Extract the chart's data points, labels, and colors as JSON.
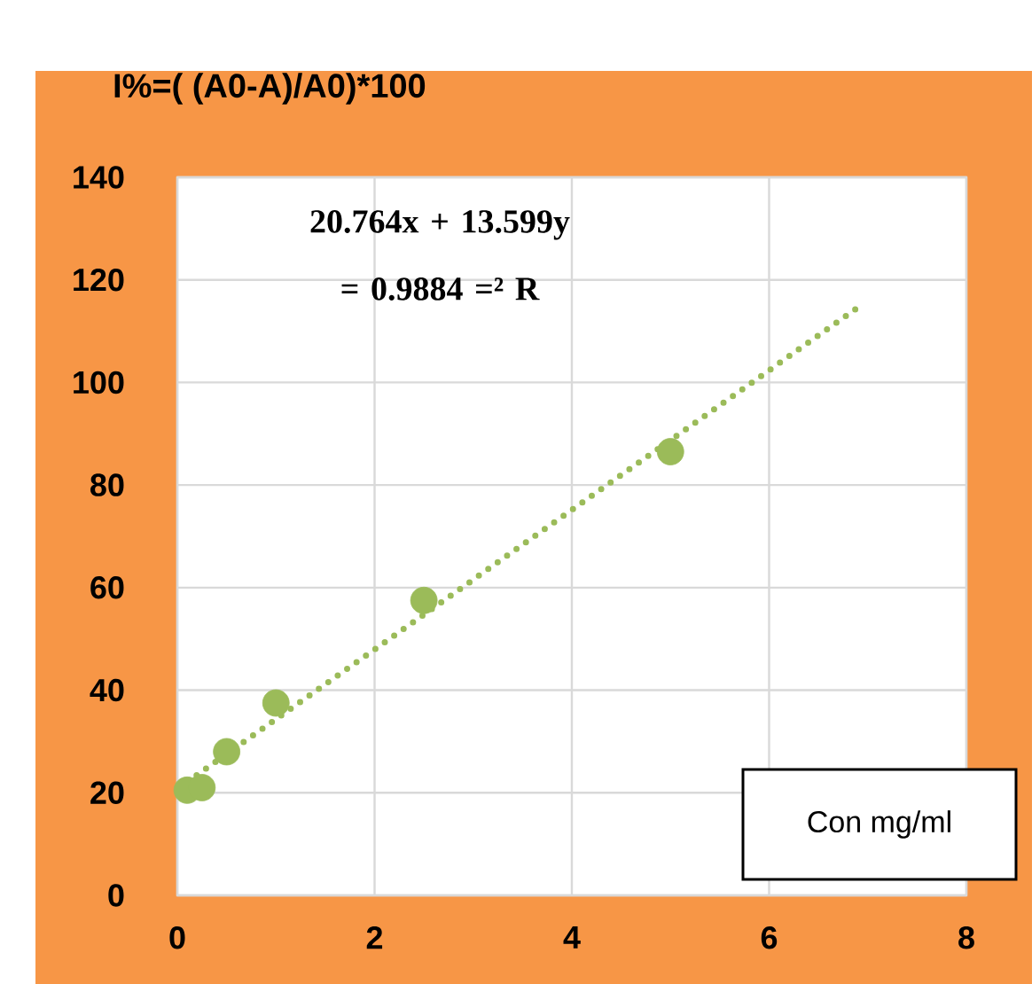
{
  "chart_data": {
    "type": "scatter",
    "title": "I%=( (A0-A)/A0)*100",
    "xlabel": "Con mg/ml",
    "annotations": [
      "20.764x + 13.599y = 0.9884 =² R"
    ],
    "series": [
      {
        "color": "#9bbb59",
        "x": [
          0.1,
          0.25,
          0.5,
          1,
          2.5,
          5
        ],
        "values": [
          20.5,
          21,
          28,
          37.5,
          57.5,
          86.5
        ]
      },
      {
        "type": "line",
        "marker": "none",
        "line_style": "dotted",
        "color": "#9bbb59",
        "x": [
          0.1,
          6.9
        ],
        "values": [
          22.1,
          114.6
        ]
      }
    ],
    "xlim": [
      0,
      8
    ],
    "xticks": [
      0,
      2,
      4,
      6,
      8
    ],
    "ylim": [
      0,
      140
    ],
    "yticks": [
      0,
      20,
      40,
      60,
      80,
      100,
      120,
      140
    ],
    "grid": true
  }
}
